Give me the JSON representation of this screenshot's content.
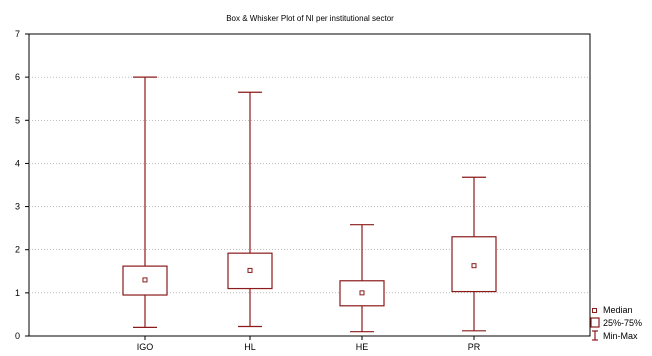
{
  "chart_data": {
    "type": "box",
    "title": "Box & Whisker Plot of NI per institutional sector",
    "categories": [
      "IGO",
      "HL",
      "HE",
      "PR"
    ],
    "boxes": [
      {
        "category": "IGO",
        "min": 0.2,
        "q1": 0.95,
        "median": 1.3,
        "q3": 1.62,
        "max": 6.0
      },
      {
        "category": "HL",
        "min": 0.22,
        "q1": 1.1,
        "median": 1.52,
        "q3": 1.92,
        "max": 5.65
      },
      {
        "category": "HE",
        "min": 0.1,
        "q1": 0.7,
        "median": 1.0,
        "q3": 1.28,
        "max": 2.58
      },
      {
        "category": "PR",
        "min": 0.12,
        "q1": 1.03,
        "median": 1.63,
        "q3": 2.3,
        "max": 3.68
      }
    ],
    "ylim": [
      0,
      7
    ],
    "yticks": [
      0,
      1,
      2,
      3,
      4,
      5,
      6,
      7
    ],
    "grid": true,
    "legend_position": "bottom-right",
    "legend": {
      "median": "Median",
      "box": "25%-75%",
      "whisker": "Min-Max"
    },
    "colors": {
      "series": "#8b1a1a",
      "grid": "#9a9a9a"
    }
  }
}
